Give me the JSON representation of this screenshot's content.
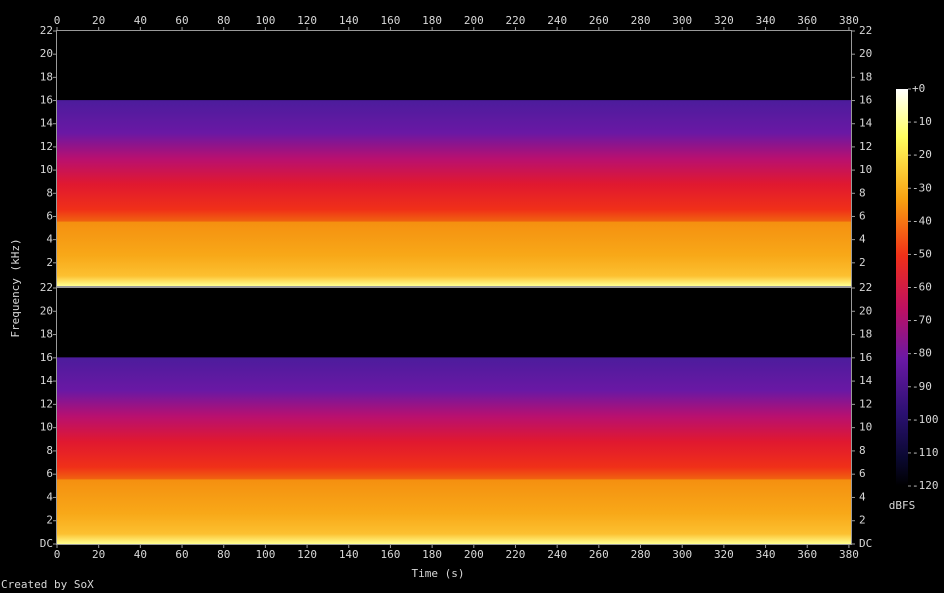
{
  "chart_data": {
    "type": "spectrogram",
    "xlabel": "Time (s)",
    "ylabel": "Frequency (kHz)",
    "xlim": [
      0,
      381
    ],
    "xticks": [
      0,
      20,
      40,
      60,
      80,
      100,
      120,
      140,
      160,
      180,
      200,
      220,
      240,
      260,
      280,
      300,
      320,
      340,
      360,
      380
    ],
    "channels": [
      {
        "ylim": [
          0,
          22
        ],
        "yticks": [
          2,
          4,
          6,
          8,
          10,
          12,
          14,
          16,
          18,
          20,
          22
        ]
      },
      {
        "ylim": [
          0,
          22
        ],
        "yticks": [
          {
            "value": 0,
            "label": "DC"
          },
          2,
          4,
          6,
          8,
          10,
          12,
          14,
          16,
          18,
          20,
          22
        ]
      }
    ],
    "colorbar": {
      "label": "dBFS",
      "lim": [
        -120,
        0
      ],
      "ticks": [
        {
          "value": 0,
          "label": "+0"
        },
        -10,
        -20,
        -30,
        -40,
        -50,
        -60,
        -70,
        -80,
        -90,
        -100,
        -110,
        -120
      ]
    }
  },
  "footer": "Created by SoX"
}
